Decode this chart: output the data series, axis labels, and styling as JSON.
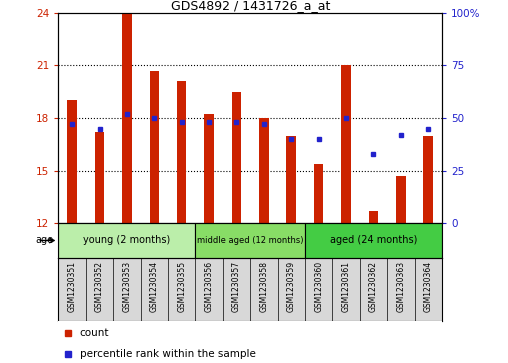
{
  "title": "GDS4892 / 1431726_a_at",
  "categories": [
    "GSM1230351",
    "GSM1230352",
    "GSM1230353",
    "GSM1230354",
    "GSM1230355",
    "GSM1230356",
    "GSM1230357",
    "GSM1230358",
    "GSM1230359",
    "GSM1230360",
    "GSM1230361",
    "GSM1230362",
    "GSM1230363",
    "GSM1230364"
  ],
  "bar_values": [
    19.0,
    17.2,
    24.0,
    20.7,
    20.1,
    18.2,
    19.5,
    18.0,
    17.0,
    15.4,
    21.0,
    12.7,
    14.7,
    17.0
  ],
  "percentile_values": [
    47,
    45,
    52,
    50,
    48,
    48,
    48,
    47,
    40,
    40,
    50,
    33,
    42,
    45
  ],
  "ylim_left": [
    12,
    24
  ],
  "ylim_right": [
    0,
    100
  ],
  "yticks_left": [
    12,
    15,
    18,
    21,
    24
  ],
  "yticks_right": [
    0,
    25,
    50,
    75,
    100
  ],
  "ytick_labels_right": [
    "0",
    "25",
    "50",
    "75",
    "100%"
  ],
  "bar_color": "#cc2200",
  "square_color": "#2222cc",
  "bar_width": 0.35,
  "groups": [
    {
      "label": "young (2 months)",
      "start": 0,
      "end": 5,
      "color": "#bbeeaa"
    },
    {
      "label": "middle aged (12 months)",
      "start": 5,
      "end": 9,
      "color": "#88dd66"
    },
    {
      "label": "aged (24 months)",
      "start": 9,
      "end": 14,
      "color": "#44cc44"
    }
  ],
  "background_color": "white",
  "tick_area_color": "#d8d8d8",
  "legend_items": [
    {
      "label": "count",
      "color": "#cc2200"
    },
    {
      "label": "percentile rank within the sample",
      "color": "#2222cc"
    }
  ]
}
